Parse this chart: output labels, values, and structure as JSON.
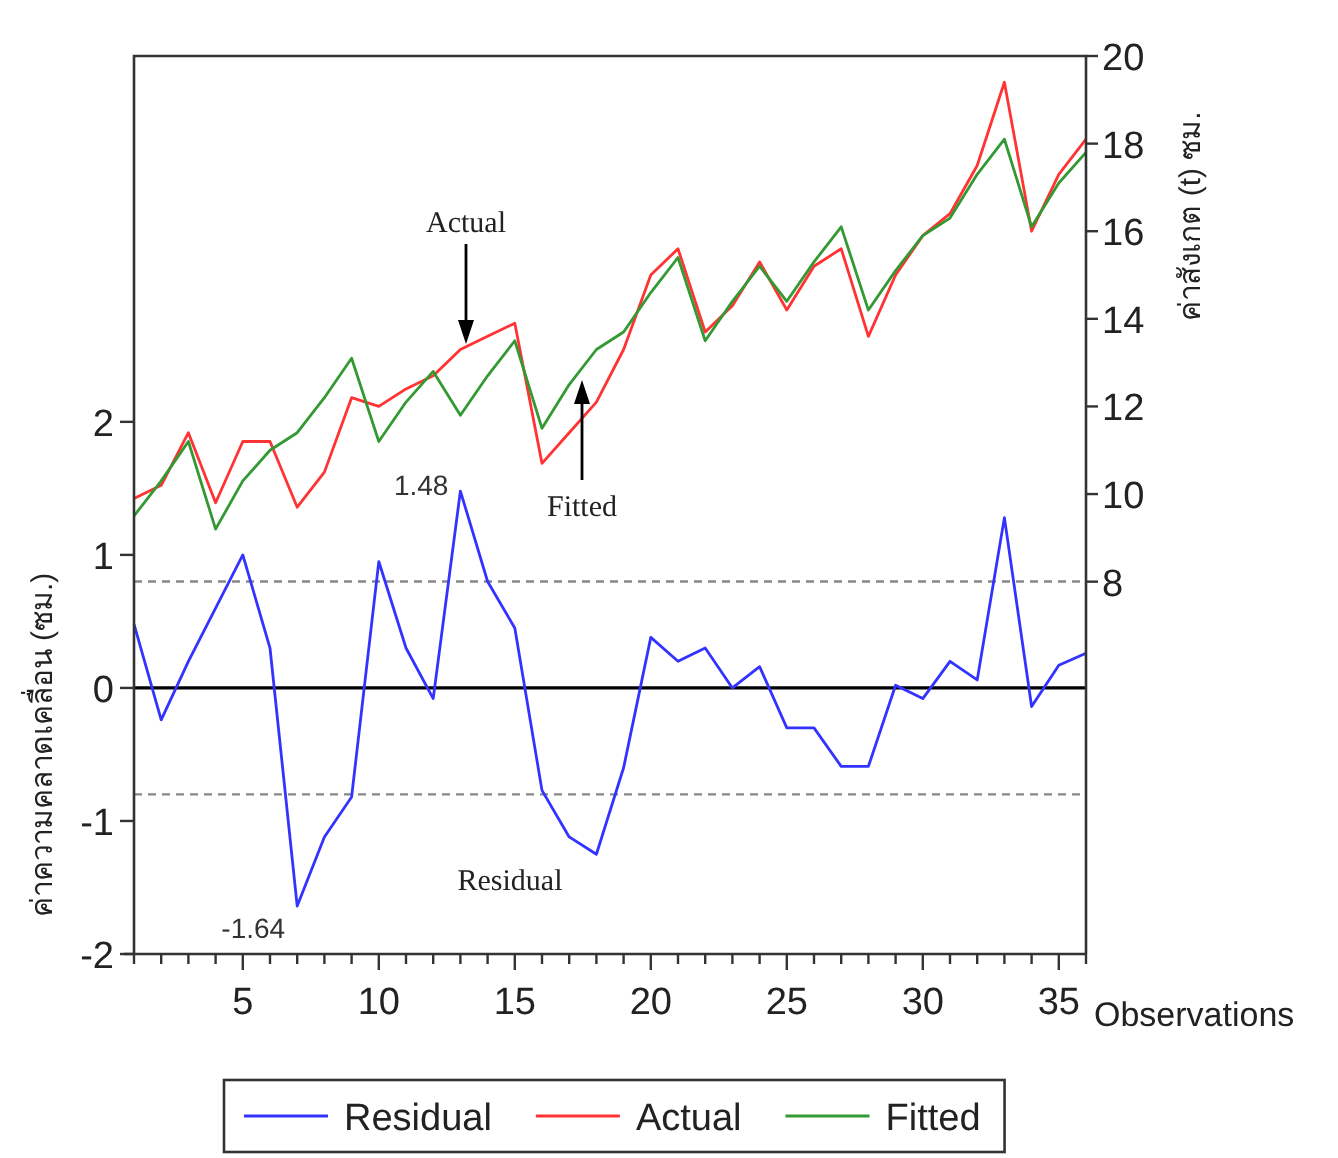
{
  "chart_data": {
    "type": "line",
    "x": [
      1,
      2,
      3,
      4,
      5,
      6,
      7,
      8,
      9,
      10,
      11,
      12,
      13,
      14,
      15,
      16,
      17,
      18,
      19,
      20,
      21,
      22,
      23,
      24,
      25,
      26,
      27,
      28,
      29,
      30,
      31,
      32,
      33,
      34,
      35,
      36
    ],
    "xlim": [
      1,
      36
    ],
    "xticks": [
      {
        "value": 1,
        "label": null
      },
      {
        "value": 2,
        "label": null
      },
      {
        "value": 3,
        "label": null
      },
      {
        "value": 4,
        "label": null
      },
      5,
      {
        "value": 6,
        "label": null
      },
      {
        "value": 7,
        "label": null
      },
      {
        "value": 8,
        "label": null
      },
      {
        "value": 9,
        "label": null
      },
      10,
      {
        "value": 11,
        "label": null
      },
      {
        "value": 12,
        "label": null
      },
      {
        "value": 13,
        "label": null
      },
      {
        "value": 14,
        "label": null
      },
      15,
      {
        "value": 16,
        "label": null
      },
      {
        "value": 17,
        "label": null
      },
      {
        "value": 18,
        "label": null
      },
      {
        "value": 19,
        "label": null
      },
      20,
      {
        "value": 21,
        "label": null
      },
      {
        "value": 22,
        "label": null
      },
      {
        "value": 23,
        "label": null
      },
      {
        "value": 24,
        "label": null
      },
      25,
      {
        "value": 26,
        "label": null
      },
      {
        "value": 27,
        "label": null
      },
      {
        "value": 28,
        "label": null
      },
      {
        "value": 29,
        "label": null
      },
      30,
      {
        "value": 31,
        "label": null
      },
      {
        "value": 32,
        "label": null
      },
      {
        "value": 33,
        "label": null
      },
      {
        "value": 34,
        "label": null
      },
      35,
      {
        "value": 36,
        "label": null
      }
    ],
    "ylim": [
      -2,
      4.75
    ],
    "yticks": [
      -2,
      -1,
      0,
      1,
      2
    ],
    "y2lim": [
      -0.5,
      20
    ],
    "y2ticks": [
      8,
      10,
      12,
      14,
      16,
      18,
      20
    ],
    "xlabel": "Observations",
    "ylabel": "ค่าความคลาดเคลื่อน (ซม.)",
    "y2label": "ค่าสังเกต (t) ซม.",
    "legend": "bottom",
    "series": [
      {
        "name": "Residual",
        "color": "#3333ff",
        "values": [
          0.48,
          -0.24,
          0.2,
          0.6,
          1.0,
          0.3,
          -1.64,
          -1.12,
          -0.82,
          0.95,
          0.3,
          -0.08,
          1.48,
          0.8,
          0.45,
          -0.77,
          -1.12,
          -1.25,
          -0.6,
          0.38,
          0.2,
          0.3,
          0.0,
          0.16,
          -0.3,
          -0.3,
          -0.59,
          -0.59,
          0.02,
          -0.08,
          0.2,
          0.06,
          1.28,
          -0.14,
          0.17,
          0.26
        ]
      },
      {
        "name": "Actual",
        "color": "#ff3333",
        "axis": "y2",
        "values": [
          9.9,
          10.2,
          11.4,
          9.8,
          11.2,
          11.2,
          9.7,
          10.5,
          12.2,
          12.0,
          12.4,
          12.7,
          13.3,
          13.6,
          13.9,
          10.7,
          11.4,
          12.1,
          13.3,
          15.0,
          15.6,
          13.7,
          14.3,
          15.3,
          14.2,
          15.2,
          15.6,
          13.6,
          15.0,
          15.9,
          16.4,
          17.5,
          19.4,
          16.0,
          17.3,
          18.1
        ]
      },
      {
        "name": "Fitted",
        "color": "#339933",
        "axis": "y2",
        "values": [
          9.5,
          10.3,
          11.2,
          9.2,
          10.3,
          11.0,
          11.4,
          12.2,
          13.1,
          11.2,
          12.1,
          12.8,
          11.8,
          12.7,
          13.5,
          11.5,
          12.5,
          13.3,
          13.7,
          14.6,
          15.4,
          13.5,
          14.4,
          15.2,
          14.4,
          15.3,
          16.1,
          14.2,
          15.1,
          15.9,
          16.3,
          17.3,
          18.1,
          16.1,
          17.1,
          17.8
        ]
      }
    ],
    "ref_lines": [
      {
        "axis": "y",
        "value": 0,
        "color": "#000000",
        "line_style": "solid"
      },
      {
        "axis": "y",
        "value": 0.8,
        "color": "#888888",
        "line_style": "dashed"
      },
      {
        "axis": "y",
        "value": -0.8,
        "color": "#888888",
        "line_style": "dashed"
      }
    ],
    "annotations": [
      {
        "text": "1.48",
        "x": 13,
        "y": 1.48
      },
      {
        "text": "-1.64",
        "x": 7,
        "y": -1.64
      },
      "Actual",
      "Fitted",
      "Residual"
    ]
  }
}
